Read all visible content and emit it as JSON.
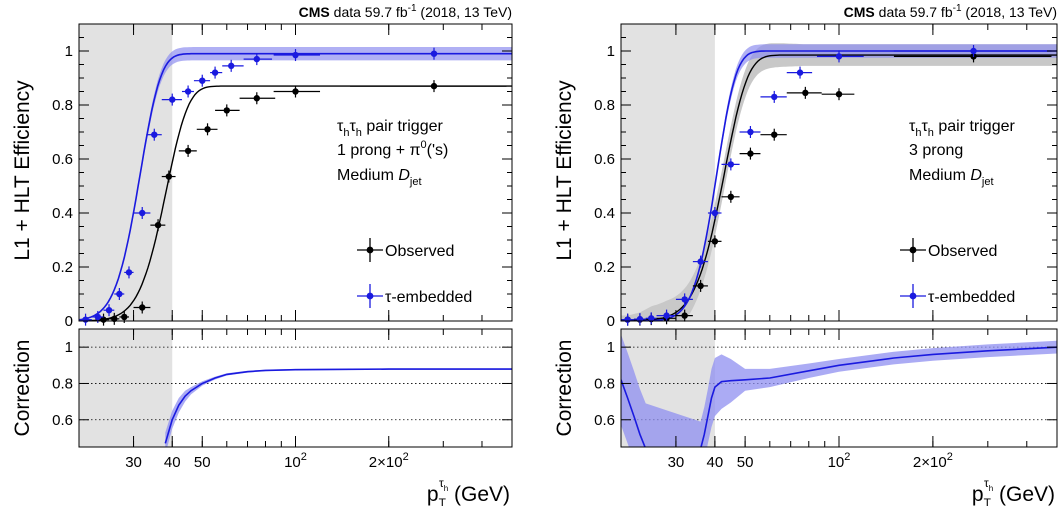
{
  "colors": {
    "observed": "#000000",
    "embedded": "#1a1adf",
    "embedded_band": "#8f8ff0",
    "shade": "#e2e2e2",
    "obs_band": "#c8c8c8"
  },
  "header": {
    "cms": "CMS",
    "lumi": "data 59.7 fb",
    "lumi_exp": "-1",
    "lumi_tail": "(2018, 13 TeV)"
  },
  "axes": {
    "ylabel_top": "L1 + HLT Efficiency",
    "ylabel_bottom": "Correction",
    "xlabel": "p",
    "xlabel_sub": "T",
    "xlabel_sup": "τ",
    "xlabel_supsub": "h",
    "xlabel_unit": "(GeV)",
    "xticks": [
      {
        "v": 30,
        "label": "30"
      },
      {
        "v": 40,
        "label": "40"
      },
      {
        "v": 50,
        "label": "50"
      },
      {
        "v": 100,
        "label": "10",
        "exp": "2"
      },
      {
        "v": 200,
        "label": "2×10",
        "exp": "2"
      }
    ],
    "yticks_top": [
      "0",
      "0.2",
      "0.4",
      "0.6",
      "0.8",
      "1"
    ],
    "yticks_bottom": [
      "0.6",
      "0.8",
      "1"
    ]
  },
  "legend": {
    "observed": "Observed",
    "embedded": "τ-embedded"
  },
  "chart_data": [
    {
      "type": "line",
      "name": "1prong",
      "xscale": "log",
      "xlim": [
        20,
        500
      ],
      "ylim": [
        0,
        1.1
      ],
      "ratio_ylim": [
        0.45,
        1.1
      ],
      "shade_max": 40,
      "label_lines": [
        {
          "main": "τ",
          "sub": "h",
          "main2": "τ",
          "sub2": "h",
          "tail": " pair trigger"
        },
        {
          "text": "1 prong + π",
          "sup": "0",
          "tail": "('s)"
        },
        {
          "text": "Medium ",
          "ital": "D",
          "sub": "jet"
        }
      ],
      "observed": {
        "fit": {
          "plateau": 0.87,
          "mu": 37.5,
          "sigma": 5.5
        },
        "points": [
          {
            "x": 24,
            "y": 0.005,
            "xl": 23,
            "xh": 25
          },
          {
            "x": 26,
            "y": 0.008,
            "xl": 25,
            "xh": 27
          },
          {
            "x": 28,
            "y": 0.015,
            "xl": 27,
            "xh": 29
          },
          {
            "x": 32,
            "y": 0.05,
            "xl": 30,
            "xh": 34
          },
          {
            "x": 36,
            "y": 0.355,
            "xl": 34,
            "xh": 38
          },
          {
            "x": 39,
            "y": 0.535,
            "xl": 37,
            "xh": 41
          },
          {
            "x": 45,
            "y": 0.63,
            "xl": 42,
            "xh": 48
          },
          {
            "x": 52,
            "y": 0.71,
            "xl": 48,
            "xh": 56
          },
          {
            "x": 60,
            "y": 0.78,
            "xl": 55,
            "xh": 66
          },
          {
            "x": 75,
            "y": 0.825,
            "xl": 66,
            "xh": 86
          },
          {
            "x": 100,
            "y": 0.85,
            "xl": 85,
            "xh": 120
          },
          {
            "x": 280,
            "y": 0.87,
            "xl": 150,
            "xh": 480
          }
        ]
      },
      "embedded": {
        "fit": {
          "plateau": 0.99,
          "mu": 31.0,
          "sigma": 4.2
        },
        "points": [
          {
            "x": 21,
            "y": 0.005,
            "xl": 20,
            "xh": 22
          },
          {
            "x": 23,
            "y": 0.015,
            "xl": 22,
            "xh": 24
          },
          {
            "x": 25,
            "y": 0.04,
            "xl": 24,
            "xh": 26
          },
          {
            "x": 27,
            "y": 0.1,
            "xl": 26,
            "xh": 28
          },
          {
            "x": 29,
            "y": 0.18,
            "xl": 28,
            "xh": 30
          },
          {
            "x": 32,
            "y": 0.4,
            "xl": 30,
            "xh": 34
          },
          {
            "x": 35,
            "y": 0.69,
            "xl": 33,
            "xh": 37
          },
          {
            "x": 40,
            "y": 0.82,
            "xl": 37,
            "xh": 43
          },
          {
            "x": 45,
            "y": 0.85,
            "xl": 43,
            "xh": 47
          },
          {
            "x": 50,
            "y": 0.89,
            "xl": 47,
            "xh": 53
          },
          {
            "x": 55,
            "y": 0.92,
            "xl": 53,
            "xh": 58
          },
          {
            "x": 62,
            "y": 0.945,
            "xl": 58,
            "xh": 68
          },
          {
            "x": 75,
            "y": 0.97,
            "xl": 68,
            "xh": 84
          },
          {
            "x": 100,
            "y": 0.985,
            "xl": 85,
            "xh": 120
          },
          {
            "x": 280,
            "y": 0.99,
            "xl": 150,
            "xh": 480
          }
        ]
      },
      "correction": {
        "x": [
          38,
          40,
          42,
          44,
          46,
          50,
          55,
          60,
          70,
          80,
          100,
          150,
          200,
          300,
          500
        ],
        "y": [
          0.47,
          0.6,
          0.68,
          0.73,
          0.76,
          0.8,
          0.83,
          0.85,
          0.865,
          0.872,
          0.876,
          0.878,
          0.879,
          0.879,
          0.879
        ],
        "band": [
          0.06,
          0.05,
          0.04,
          0.03,
          0.02,
          0.012,
          0.008,
          0.006,
          0.005,
          0.004,
          0.004,
          0.004,
          0.004,
          0.004,
          0.004
        ]
      }
    },
    {
      "type": "line",
      "name": "3prong",
      "xscale": "log",
      "xlim": [
        20,
        500
      ],
      "ylim": [
        0,
        1.1
      ],
      "ratio_ylim": [
        0.45,
        1.1
      ],
      "shade_max": 40,
      "label_lines": [
        {
          "main": "τ",
          "sub": "h",
          "main2": "τ",
          "sub2": "h",
          "tail": " pair trigger"
        },
        {
          "text": "3 prong"
        },
        {
          "text": "Medium ",
          "ital": "D",
          "sub": "jet"
        }
      ],
      "observed": {
        "fit": {
          "plateau": 0.985,
          "mu": 42.0,
          "sigma": 6.5
        },
        "band_widths": [
          0.02,
          0.03,
          0.05,
          0.06,
          0.06,
          0.06,
          0.06,
          0.055,
          0.05,
          0.045,
          0.04,
          0.04,
          0.04
        ],
        "points": [
          {
            "x": 21,
            "y": 0.005,
            "xl": 20,
            "xh": 22
          },
          {
            "x": 23,
            "y": 0.005,
            "xl": 22,
            "xh": 24
          },
          {
            "x": 25,
            "y": 0.007,
            "xl": 24,
            "xh": 26
          },
          {
            "x": 28,
            "y": 0.01,
            "xl": 26,
            "xh": 30
          },
          {
            "x": 32,
            "y": 0.02,
            "xl": 30,
            "xh": 34
          },
          {
            "x": 36,
            "y": 0.13,
            "xl": 34,
            "xh": 38
          },
          {
            "x": 40,
            "y": 0.295,
            "xl": 38,
            "xh": 42
          },
          {
            "x": 45,
            "y": 0.46,
            "xl": 42,
            "xh": 48
          },
          {
            "x": 52,
            "y": 0.62,
            "xl": 48,
            "xh": 56
          },
          {
            "x": 62,
            "y": 0.69,
            "xl": 56,
            "xh": 68
          },
          {
            "x": 78,
            "y": 0.845,
            "xl": 68,
            "xh": 88
          },
          {
            "x": 100,
            "y": 0.84,
            "xl": 88,
            "xh": 112
          },
          {
            "x": 270,
            "y": 0.98,
            "xl": 150,
            "xh": 480
          }
        ]
      },
      "embedded": {
        "fit": {
          "plateau": 1.0,
          "mu": 40.0,
          "sigma": 5.0
        },
        "points": [
          {
            "x": 21,
            "y": 0.005,
            "xl": 20,
            "xh": 22
          },
          {
            "x": 23,
            "y": 0.007,
            "xl": 22,
            "xh": 24
          },
          {
            "x": 25,
            "y": 0.01,
            "xl": 24,
            "xh": 26
          },
          {
            "x": 28,
            "y": 0.02,
            "xl": 26,
            "xh": 30
          },
          {
            "x": 32,
            "y": 0.08,
            "xl": 30,
            "xh": 34
          },
          {
            "x": 36,
            "y": 0.22,
            "xl": 34,
            "xh": 38
          },
          {
            "x": 40,
            "y": 0.4,
            "xl": 38,
            "xh": 42
          },
          {
            "x": 45,
            "y": 0.58,
            "xl": 42,
            "xh": 48
          },
          {
            "x": 52,
            "y": 0.7,
            "xl": 48,
            "xh": 56
          },
          {
            "x": 62,
            "y": 0.83,
            "xl": 56,
            "xh": 68
          },
          {
            "x": 75,
            "y": 0.92,
            "xl": 68,
            "xh": 82
          },
          {
            "x": 100,
            "y": 0.98,
            "xl": 85,
            "xh": 120
          },
          {
            "x": 270,
            "y": 1.0,
            "xl": 150,
            "xh": 480
          }
        ]
      },
      "correction": {
        "x": [
          20,
          21,
          22,
          23,
          24,
          36,
          37,
          38,
          39,
          40,
          42,
          45,
          50,
          60,
          80,
          100,
          150,
          200,
          300,
          500
        ],
        "y": [
          0.82,
          0.72,
          0.62,
          0.52,
          0.44,
          0.44,
          0.52,
          0.62,
          0.72,
          0.78,
          0.81,
          0.815,
          0.82,
          0.83,
          0.87,
          0.9,
          0.94,
          0.96,
          0.98,
          1.0
        ],
        "band": [
          0.25,
          0.25,
          0.25,
          0.25,
          0.25,
          0.15,
          0.15,
          0.15,
          0.16,
          0.16,
          0.15,
          0.12,
          0.06,
          0.05,
          0.04,
          0.035,
          0.035,
          0.035,
          0.035,
          0.035
        ]
      }
    }
  ]
}
